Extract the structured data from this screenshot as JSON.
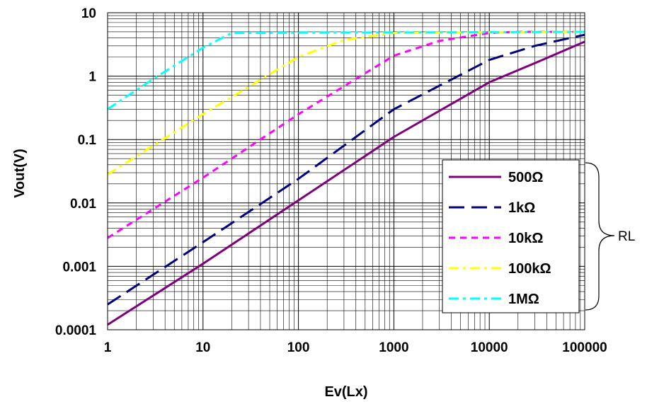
{
  "chart_data": {
    "type": "line",
    "xlabel": "Ev(Lx)",
    "ylabel": "Vout(V)",
    "x_scale": "log",
    "y_scale": "log",
    "xlim": [
      1,
      100000
    ],
    "ylim": [
      0.0001,
      10
    ],
    "grid": true,
    "legend_position": "bottom-right",
    "x_tick_labels": [
      "1",
      "10",
      "100",
      "1000",
      "10000",
      "100000"
    ],
    "y_tick_labels": [
      "10",
      "1",
      "0.1",
      "0.01",
      "0.001",
      "0.0001"
    ],
    "legend_group_label": "RL",
    "series": [
      {
        "name": "500Ω",
        "color": "#800080",
        "dash": "solid",
        "x": [
          1,
          10,
          100,
          1000,
          10000,
          30000,
          100000
        ],
        "y": [
          0.00012,
          0.0011,
          0.011,
          0.11,
          0.8,
          1.6,
          3.5
        ]
      },
      {
        "name": "1kΩ",
        "color": "#000080",
        "dash": "long-dash",
        "x": [
          1,
          10,
          100,
          1000,
          10000,
          30000,
          100000
        ],
        "y": [
          0.00025,
          0.0024,
          0.024,
          0.3,
          1.8,
          3.0,
          4.5
        ]
      },
      {
        "name": "10kΩ",
        "color": "#FF00FF",
        "dash": "short-dash",
        "x": [
          1,
          10,
          100,
          1000,
          3000,
          10000,
          20000,
          100000
        ],
        "y": [
          0.0028,
          0.025,
          0.25,
          2.1,
          3.6,
          4.8,
          5.0,
          5.0
        ]
      },
      {
        "name": "100kΩ",
        "color": "#FFFF00",
        "dash": "dash-dot",
        "x": [
          1,
          10,
          100,
          300,
          1000,
          100000
        ],
        "y": [
          0.028,
          0.25,
          2.0,
          3.7,
          4.8,
          5.0
        ]
      },
      {
        "name": "1MΩ",
        "color": "#00FFFF",
        "dash": "dash-dot",
        "x": [
          1,
          3,
          10,
          20,
          100000
        ],
        "y": [
          0.3,
          0.9,
          2.8,
          4.8,
          5.0
        ]
      }
    ]
  }
}
